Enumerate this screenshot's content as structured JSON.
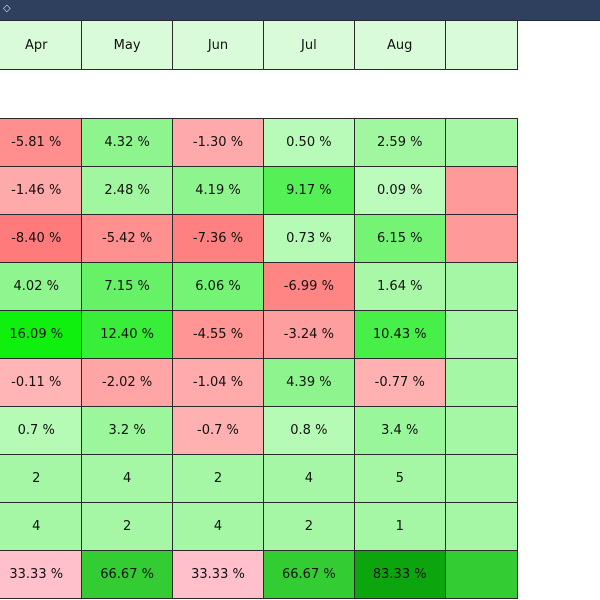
{
  "window": {
    "titlebar_icon": "diamond-icon"
  },
  "table": {
    "columns": [
      {
        "label": ""
      },
      {
        "label": "Apr"
      },
      {
        "label": "May"
      },
      {
        "label": "Jun"
      },
      {
        "label": "Jul"
      },
      {
        "label": "Aug"
      },
      {
        "label": ""
      }
    ],
    "rows": [
      {
        "cells": [
          {
            "text": "",
            "color": "#a5f7a5"
          },
          {
            "text": "-5.81 %",
            "color": "#ff8f8f"
          },
          {
            "text": "4.32 %",
            "color": "#8ef58e"
          },
          {
            "text": "-1.30 %",
            "color": "#ffaaaa"
          },
          {
            "text": "0.50 %",
            "color": "#b8fab8"
          },
          {
            "text": "2.59 %",
            "color": "#a0f7a0"
          },
          {
            "text": "",
            "color": "#a5f7a5"
          }
        ]
      },
      {
        "cells": [
          {
            "text": "",
            "color": "#a5f7a5"
          },
          {
            "text": "-1.46 %",
            "color": "#ffaaaa"
          },
          {
            "text": "2.48 %",
            "color": "#a0f7a0"
          },
          {
            "text": "4.19 %",
            "color": "#8ef58e"
          },
          {
            "text": "9.17 %",
            "color": "#55f055"
          },
          {
            "text": "0.09 %",
            "color": "#bbfbbb"
          },
          {
            "text": "",
            "color": "#ff9a9a"
          }
        ]
      },
      {
        "cells": [
          {
            "text": "",
            "color": "#a5f7a5"
          },
          {
            "text": "-8.40 %",
            "color": "#ff7b7b"
          },
          {
            "text": "-5.42 %",
            "color": "#ff9090"
          },
          {
            "text": "-7.36 %",
            "color": "#ff8080"
          },
          {
            "text": "0.73 %",
            "color": "#b5fab5"
          },
          {
            "text": "6.15 %",
            "color": "#74f374"
          },
          {
            "text": "",
            "color": "#ff9a9a"
          }
        ]
      },
      {
        "cells": [
          {
            "text": "",
            "color": "#a5f7a5"
          },
          {
            "text": "4.02 %",
            "color": "#8ff58f"
          },
          {
            "text": "7.15 %",
            "color": "#66f166"
          },
          {
            "text": "6.06 %",
            "color": "#74f374"
          },
          {
            "text": "-6.99 %",
            "color": "#ff8585"
          },
          {
            "text": "1.64 %",
            "color": "#a8f8a8"
          },
          {
            "text": "",
            "color": "#a5f7a5"
          }
        ]
      },
      {
        "cells": [
          {
            "text": "",
            "color": "#ff0f0f"
          },
          {
            "text": "16.09 %",
            "color": "#0ff00f"
          },
          {
            "text": "12.40 %",
            "color": "#38ee38"
          },
          {
            "text": "-4.55 %",
            "color": "#ff9595"
          },
          {
            "text": "-3.24 %",
            "color": "#ff9e9e"
          },
          {
            "text": "10.43 %",
            "color": "#48ef48"
          },
          {
            "text": "",
            "color": "#a5f7a5"
          }
        ]
      },
      {
        "cells": [
          {
            "text": "",
            "color": "#a5f7a5"
          },
          {
            "text": "-0.11 %",
            "color": "#ffb5b5"
          },
          {
            "text": "-2.02 %",
            "color": "#ffa5a5"
          },
          {
            "text": "-1.04 %",
            "color": "#ffabab"
          },
          {
            "text": "4.39 %",
            "color": "#8ef58e"
          },
          {
            "text": "-0.77 %",
            "color": "#ffb0b0"
          },
          {
            "text": "",
            "color": "#a5f7a5"
          }
        ]
      },
      {
        "cells": [
          {
            "text": "",
            "color": "#ffa5a5"
          },
          {
            "text": "0.7 %",
            "color": "#b5fab5"
          },
          {
            "text": "3.2 %",
            "color": "#9cf69c"
          },
          {
            "text": "-0.7 %",
            "color": "#ffb0b0"
          },
          {
            "text": "0.8 %",
            "color": "#b5fab5"
          },
          {
            "text": "3.4 %",
            "color": "#9af69a"
          },
          {
            "text": "",
            "color": "#a5f7a5"
          }
        ]
      },
      {
        "cells": [
          {
            "text": "",
            "color": "#7ef47e"
          },
          {
            "text": "2",
            "color": "#a5f7a5"
          },
          {
            "text": "4",
            "color": "#a5f7a5"
          },
          {
            "text": "2",
            "color": "#a5f7a5"
          },
          {
            "text": "4",
            "color": "#a5f7a5"
          },
          {
            "text": "5",
            "color": "#a5f7a5"
          },
          {
            "text": "",
            "color": "#a5f7a5"
          }
        ]
      },
      {
        "cells": [
          {
            "text": "",
            "color": "#7ef47e"
          },
          {
            "text": "4",
            "color": "#a5f7a5"
          },
          {
            "text": "2",
            "color": "#a5f7a5"
          },
          {
            "text": "4",
            "color": "#a5f7a5"
          },
          {
            "text": "2",
            "color": "#a5f7a5"
          },
          {
            "text": "1",
            "color": "#a5f7a5"
          },
          {
            "text": "",
            "color": "#a5f7a5"
          }
        ]
      },
      {
        "cells": [
          {
            "text": "",
            "color": "#0aa30a"
          },
          {
            "text": "33.33 %",
            "color": "#ffc0cb"
          },
          {
            "text": "66.67 %",
            "color": "#33cc33"
          },
          {
            "text": "33.33 %",
            "color": "#ffc0cb"
          },
          {
            "text": "66.67 %",
            "color": "#33cc33"
          },
          {
            "text": "83.33 %",
            "color": "#0da50d"
          },
          {
            "text": "",
            "color": "#33cc33"
          }
        ]
      }
    ]
  }
}
